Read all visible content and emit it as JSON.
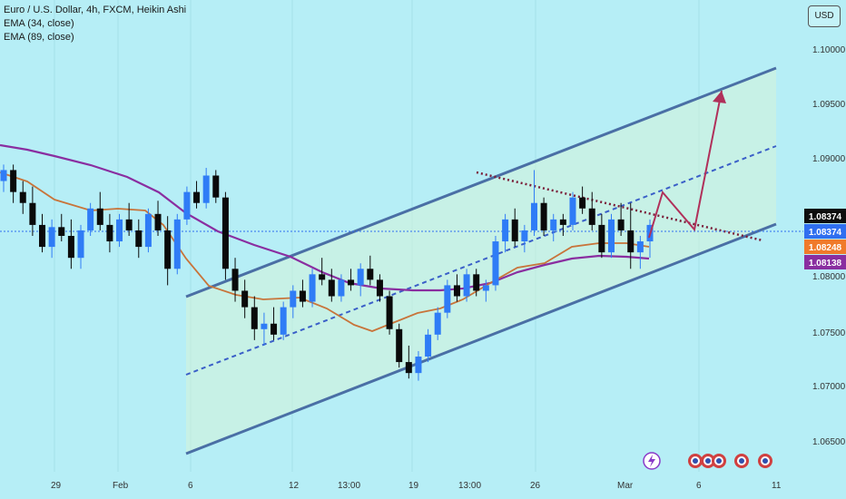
{
  "legend": {
    "title": "Euro / U.S. Dollar, 4h, FXCM, Heikin Ashi",
    "ema1": "EMA (34, close)",
    "ema2": "EMA (89, close)"
  },
  "currency_button": "USD",
  "colors": {
    "background": "#b6eef6",
    "bull": "#2f7cf6",
    "bear": "#0a0a0a",
    "ema34": "#c8743a",
    "ema89": "#8a2ea0",
    "channel": "#4a6fa5",
    "arrow": "#b0305a",
    "dashed_line": "#3a5fc8",
    "dotted_line": "#7a1f3a",
    "price_line": "#2f6ff0"
  },
  "chart_data": {
    "type": "candlestick",
    "title": "Euro / U.S. Dollar, 4h, FXCM, Heikin Ashi",
    "ylim": [
      1.0615,
      1.1045
    ],
    "yticks": [
      "1.10000",
      "1.09500",
      "1.09000",
      "1.08500",
      "1.08000",
      "1.07500",
      "1.07000",
      "1.06500"
    ],
    "xticks": [
      "29",
      "Feb",
      "6",
      "12",
      "13:00",
      "19",
      "13:00",
      "26",
      "Mar",
      "6",
      "11"
    ],
    "badges": [
      {
        "label": "1.08374",
        "value": 1.08374,
        "color": "#0d0d0d"
      },
      {
        "label": "1.08374",
        "value": 1.08374,
        "color": "#2f6ff0"
      },
      {
        "label": "1.08248",
        "value": 1.08248,
        "color": "#f07a2a"
      },
      {
        "label": "1.08138",
        "value": 1.08138,
        "color": "#8a2ea0"
      }
    ],
    "candles": [
      [
        1.088,
        1.0895,
        1.087,
        1.089
      ],
      [
        1.089,
        1.0895,
        1.086,
        1.087
      ],
      [
        1.087,
        1.088,
        1.085,
        1.086
      ],
      [
        1.086,
        1.0875,
        1.083,
        1.084
      ],
      [
        1.084,
        1.085,
        1.0815,
        1.082
      ],
      [
        1.082,
        1.0845,
        1.081,
        1.0838
      ],
      [
        1.0838,
        1.085,
        1.0825,
        1.083
      ],
      [
        1.083,
        1.0845,
        1.08,
        1.081
      ],
      [
        1.081,
        1.084,
        1.08,
        1.0835
      ],
      [
        1.0835,
        1.086,
        1.083,
        1.0855
      ],
      [
        1.0855,
        1.087,
        1.0835,
        1.084
      ],
      [
        1.084,
        1.085,
        1.0815,
        1.0825
      ],
      [
        1.0825,
        1.085,
        1.082,
        1.0845
      ],
      [
        1.0845,
        1.086,
        1.083,
        1.0835
      ],
      [
        1.0835,
        1.0845,
        1.081,
        1.082
      ],
      [
        1.082,
        1.0855,
        1.0815,
        1.085
      ],
      [
        1.085,
        1.0862,
        1.083,
        1.0835
      ],
      [
        1.0835,
        1.0848,
        1.0785,
        1.08
      ],
      [
        1.08,
        1.085,
        1.0795,
        1.0845
      ],
      [
        1.0845,
        1.0875,
        1.084,
        1.087
      ],
      [
        1.087,
        1.088,
        1.0855,
        1.086
      ],
      [
        1.086,
        1.0892,
        1.0855,
        1.0885
      ],
      [
        1.0885,
        1.089,
        1.086,
        1.0865
      ],
      [
        1.0865,
        1.087,
        1.079,
        1.08
      ],
      [
        1.08,
        1.081,
        1.077,
        1.078
      ],
      [
        1.078,
        1.079,
        1.0755,
        1.0765
      ],
      [
        1.0765,
        1.0775,
        1.0735,
        1.0745
      ],
      [
        1.0745,
        1.076,
        1.073,
        1.075
      ],
      [
        1.075,
        1.0765,
        1.0735,
        1.074
      ],
      [
        1.074,
        1.077,
        1.0735,
        1.0765
      ],
      [
        1.0765,
        1.0785,
        1.0755,
        1.078
      ],
      [
        1.078,
        1.079,
        1.0765,
        1.077
      ],
      [
        1.077,
        1.08,
        1.0765,
        1.0795
      ],
      [
        1.0795,
        1.081,
        1.0785,
        1.079
      ],
      [
        1.079,
        1.08,
        1.077,
        1.0775
      ],
      [
        1.0775,
        1.0795,
        1.077,
        1.079
      ],
      [
        1.079,
        1.08,
        1.078,
        1.0785
      ],
      [
        1.0785,
        1.0805,
        1.0775,
        1.08
      ],
      [
        1.08,
        1.0812,
        1.0785,
        1.079
      ],
      [
        1.079,
        1.0795,
        1.077,
        1.0775
      ],
      [
        1.0775,
        1.078,
        1.074,
        1.0745
      ],
      [
        1.0745,
        1.075,
        1.071,
        1.0715
      ],
      [
        1.0715,
        1.073,
        1.07,
        1.0705
      ],
      [
        1.0705,
        1.0725,
        1.0698,
        1.072
      ],
      [
        1.072,
        1.0745,
        1.0715,
        1.074
      ],
      [
        1.074,
        1.0765,
        1.0735,
        1.076
      ],
      [
        1.076,
        1.079,
        1.0755,
        1.0785
      ],
      [
        1.0785,
        1.0795,
        1.077,
        1.0775
      ],
      [
        1.0775,
        1.08,
        1.077,
        1.0795
      ],
      [
        1.0795,
        1.08,
        1.0775,
        1.078
      ],
      [
        1.078,
        1.079,
        1.077,
        1.0785
      ],
      [
        1.0785,
        1.083,
        1.078,
        1.0825
      ],
      [
        1.0825,
        1.085,
        1.0815,
        1.0845
      ],
      [
        1.0845,
        1.0855,
        1.082,
        1.0825
      ],
      [
        1.0825,
        1.084,
        1.0815,
        1.0835
      ],
      [
        1.0835,
        1.089,
        1.083,
        1.086
      ],
      [
        1.086,
        1.0865,
        1.083,
        1.0835
      ],
      [
        1.0835,
        1.085,
        1.0825,
        1.0845
      ],
      [
        1.0845,
        1.085,
        1.083,
        1.084
      ],
      [
        1.084,
        1.087,
        1.0835,
        1.0865
      ],
      [
        1.0865,
        1.0875,
        1.085,
        1.0855
      ],
      [
        1.0855,
        1.087,
        1.0835,
        1.084
      ],
      [
        1.084,
        1.085,
        1.081,
        1.0815
      ],
      [
        1.0815,
        1.085,
        1.081,
        1.0845
      ],
      [
        1.0845,
        1.086,
        1.083,
        1.0835
      ],
      [
        1.0835,
        1.086,
        1.08,
        1.0815
      ],
      [
        1.0815,
        1.083,
        1.08,
        1.0825
      ],
      [
        1.0825,
        1.0845,
        1.081,
        1.084
      ]
    ]
  }
}
